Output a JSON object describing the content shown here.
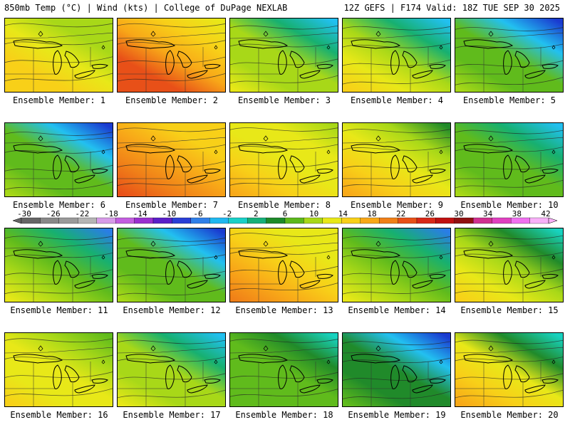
{
  "header": {
    "left": "850mb Temp (°C) | Wind (kts) | College of DuPage NEXLAB",
    "right": "12Z GEFS | F174 Valid: 18Z TUE SEP 30 2025"
  },
  "member_label_prefix": "Ensemble Member: ",
  "members": [
    {
      "num": "1",
      "cold": 0.15,
      "warm": 0.35
    },
    {
      "num": "2",
      "cold": 0.2,
      "warm": 0.85
    },
    {
      "num": "3",
      "cold": 0.55,
      "warm": 0.3
    },
    {
      "num": "4",
      "cold": 0.7,
      "warm": 0.55
    },
    {
      "num": "5",
      "cold": 0.85,
      "warm": 0.3
    },
    {
      "num": "6",
      "cold": 0.85,
      "warm": 0.3
    },
    {
      "num": "7",
      "cold": 0.15,
      "warm": 0.8
    },
    {
      "num": "8",
      "cold": 0.1,
      "warm": 0.4
    },
    {
      "num": "9",
      "cold": 0.35,
      "warm": 0.55
    },
    {
      "num": "10",
      "cold": 0.55,
      "warm": 0.15
    },
    {
      "num": "11",
      "cold": 0.65,
      "warm": 0.35
    },
    {
      "num": "12",
      "cold": 0.95,
      "warm": 0.35
    },
    {
      "num": "13",
      "cold": 0.1,
      "warm": 0.55
    },
    {
      "num": "14",
      "cold": 0.7,
      "warm": 0.35
    },
    {
      "num": "15",
      "cold": 0.55,
      "warm": 0.4
    },
    {
      "num": "16",
      "cold": 0.25,
      "warm": 0.35
    },
    {
      "num": "17",
      "cold": 0.55,
      "warm": 0.3
    },
    {
      "num": "18",
      "cold": 0.35,
      "warm": 0.05
    },
    {
      "num": "19",
      "cold": 0.75,
      "warm": 0.1
    },
    {
      "num": "20",
      "cold": 0.55,
      "warm": 0.55
    }
  ],
  "colorbar": {
    "ticks": [
      "-30",
      "-26",
      "-22",
      "-18",
      "-14",
      "-10",
      "-6",
      "-2",
      "2",
      "6",
      "10",
      "14",
      "18",
      "22",
      "26",
      "30",
      "34",
      "38",
      "42"
    ],
    "colors": [
      "#666666",
      "#888888",
      "#9a9a9a",
      "#b5b5b5",
      "#d79be8",
      "#c35ee0",
      "#9a2fd0",
      "#5a1fc8",
      "#2a3ed6",
      "#2f7fe8",
      "#20b8f0",
      "#19d0c8",
      "#16b07a",
      "#1d8a2a",
      "#5cb81c",
      "#a8d818",
      "#e8e818",
      "#f8d018",
      "#f8a818",
      "#f08018",
      "#e85018",
      "#d82818",
      "#c01010",
      "#901010",
      "#d03090",
      "#e040c0",
      "#f070f0",
      "#f8b0f8"
    ]
  }
}
